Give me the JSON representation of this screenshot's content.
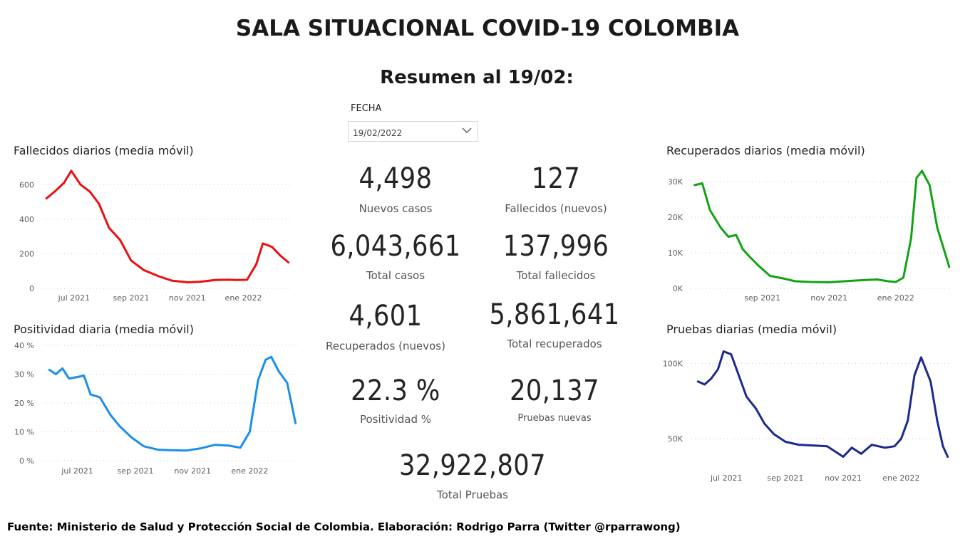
{
  "header": {
    "title": "SALA SITUACIONAL COVID-19 COLOMBIA",
    "subtitle": "Resumen al 19/02:"
  },
  "slicer": {
    "label": "FECHA",
    "value": "19/02/2022"
  },
  "cards": [
    {
      "value": "4,498",
      "label": "Nuevos casos"
    },
    {
      "value": "127",
      "label": "Fallecidos (nuevos)"
    },
    {
      "value": "6,043,661",
      "label": "Total casos"
    },
    {
      "value": "137,996",
      "label": "Total fallecidos"
    },
    {
      "value": "4,601",
      "label": "Recuperados (nuevos)"
    },
    {
      "value": "5,861,641",
      "label": "Total recuperados"
    },
    {
      "value": "22.3 %",
      "label": "Positividad %"
    },
    {
      "value": "20,137",
      "label": "Pruebas nuevas"
    },
    {
      "value": "32,922,807",
      "label": "Total Pruebas"
    }
  ],
  "footer": "Fuente: Ministerio de Salud y Protección Social de Colombia. Elaboración: Rodrigo Parra (Twitter @rparrawong)",
  "chart_data": [
    {
      "type": "line",
      "title": "Fallecidos diarios (media móvil)",
      "color": "#e8110f",
      "x": [
        "2021-06-01",
        "2021-06-10",
        "2021-06-20",
        "2021-06-28",
        "2021-07-08",
        "2021-07-18",
        "2021-07-28",
        "2021-08-08",
        "2021-08-20",
        "2021-09-01",
        "2021-09-15",
        "2021-10-01",
        "2021-10-15",
        "2021-11-01",
        "2021-11-15",
        "2021-12-01",
        "2021-12-15",
        "2021-12-25",
        "2022-01-05",
        "2022-01-15",
        "2022-01-22",
        "2022-02-01",
        "2022-02-10",
        "2022-02-19"
      ],
      "y": [
        520,
        560,
        610,
        680,
        600,
        560,
        490,
        350,
        280,
        160,
        105,
        70,
        45,
        35,
        38,
        48,
        50,
        48,
        50,
        140,
        260,
        240,
        190,
        150
      ],
      "xticks": [
        "jul 2021",
        "sep 2021",
        "nov 2021",
        "ene 2022"
      ],
      "xtick_dates": [
        "2021-07-01",
        "2021-09-01",
        "2021-11-01",
        "2022-01-01"
      ],
      "yticks": [
        "0",
        "200",
        "400",
        "600"
      ],
      "ytick_values": [
        0,
        200,
        400,
        600
      ],
      "xlim": [
        "2021-05-28",
        "2022-02-23"
      ],
      "ylim": [
        0,
        700
      ]
    },
    {
      "type": "line",
      "title": "Positividad diaria (media móvil)",
      "color": "#1a8fe8",
      "x": [
        "2021-06-01",
        "2021-06-08",
        "2021-06-15",
        "2021-06-22",
        "2021-07-01",
        "2021-07-08",
        "2021-07-15",
        "2021-07-25",
        "2021-08-05",
        "2021-08-15",
        "2021-08-28",
        "2021-09-10",
        "2021-09-25",
        "2021-10-10",
        "2021-10-25",
        "2021-11-10",
        "2021-11-25",
        "2021-12-10",
        "2021-12-22",
        "2022-01-01",
        "2022-01-10",
        "2022-01-18",
        "2022-01-24",
        "2022-02-01",
        "2022-02-10",
        "2022-02-19"
      ],
      "y": [
        31.5,
        30,
        32,
        28.5,
        29,
        29.5,
        23,
        22,
        16,
        12,
        8,
        5,
        3.8,
        3.6,
        3.5,
        4.3,
        5.5,
        5.2,
        4.5,
        10,
        28,
        35,
        36,
        31,
        27,
        13
      ],
      "xticks": [
        "jul 2021",
        "sep 2021",
        "nov 2021",
        "ene 2022"
      ],
      "xtick_dates": [
        "2021-07-01",
        "2021-09-01",
        "2021-11-01",
        "2022-01-01"
      ],
      "yticks": [
        "0 %",
        "10 %",
        "20 %",
        "30 %",
        "40 %"
      ],
      "ytick_values": [
        0,
        10,
        20,
        30,
        40
      ],
      "xlim": [
        "2021-05-25",
        "2022-02-23"
      ],
      "ylim": [
        0,
        40
      ]
    },
    {
      "type": "line",
      "title": "Recuperados diarios (media móvil)",
      "color": "#12a212",
      "x": [
        "2021-07-01",
        "2021-07-08",
        "2021-07-15",
        "2021-07-25",
        "2021-08-01",
        "2021-08-08",
        "2021-08-14",
        "2021-08-20",
        "2021-08-28",
        "2021-09-08",
        "2021-09-20",
        "2021-10-01",
        "2021-10-15",
        "2021-11-01",
        "2021-11-15",
        "2021-12-01",
        "2021-12-15",
        "2021-12-25",
        "2022-01-01",
        "2022-01-08",
        "2022-01-15",
        "2022-01-20",
        "2022-01-25",
        "2022-02-01",
        "2022-02-08",
        "2022-02-14",
        "2022-02-19"
      ],
      "y": [
        29000,
        29500,
        22000,
        17000,
        14500,
        15000,
        11000,
        9000,
        6500,
        3500,
        2800,
        2000,
        1800,
        1700,
        2000,
        2300,
        2500,
        2000,
        1800,
        3000,
        14000,
        31000,
        33000,
        29000,
        17000,
        11000,
        6000
      ],
      "xticks": [
        "sep 2021",
        "nov 2021",
        "ene 2022"
      ],
      "xtick_dates": [
        "2021-09-01",
        "2021-11-01",
        "2022-01-01"
      ],
      "yticks": [
        "0K",
        "10K",
        "20K",
        "30K"
      ],
      "ytick_values": [
        0,
        10000,
        20000,
        30000
      ],
      "xlim": [
        "2021-06-28",
        "2022-02-21"
      ],
      "ylim": [
        0,
        34000
      ]
    },
    {
      "type": "line",
      "title": "Pruebas diarias (media móvil)",
      "color": "#1c2a8e",
      "x": [
        "2021-06-01",
        "2021-06-08",
        "2021-06-15",
        "2021-06-22",
        "2021-06-28",
        "2021-07-06",
        "2021-07-14",
        "2021-07-22",
        "2021-08-01",
        "2021-08-10",
        "2021-08-20",
        "2021-09-01",
        "2021-09-15",
        "2021-10-01",
        "2021-10-15",
        "2021-11-01",
        "2021-11-10",
        "2021-11-20",
        "2021-12-01",
        "2021-12-15",
        "2021-12-25",
        "2022-01-01",
        "2022-01-08",
        "2022-01-15",
        "2022-01-22",
        "2022-02-01",
        "2022-02-08",
        "2022-02-14",
        "2022-02-19"
      ],
      "y": [
        88000,
        86000,
        90000,
        96000,
        108000,
        106000,
        92000,
        78000,
        70000,
        60000,
        53000,
        48000,
        46000,
        45500,
        45000,
        38000,
        44000,
        40000,
        46000,
        44000,
        45000,
        50000,
        62000,
        92000,
        104000,
        88000,
        62000,
        45000,
        38000
      ],
      "xticks": [
        "jul 2021",
        "sep 2021",
        "nov 2021",
        "ene 2022"
      ],
      "xtick_dates": [
        "2021-07-01",
        "2021-09-01",
        "2021-11-01",
        "2022-01-01"
      ],
      "yticks": [
        "50K",
        "100K"
      ],
      "ytick_values": [
        50000,
        100000
      ],
      "xlim": [
        "2021-05-25",
        "2022-02-23"
      ],
      "ylim": [
        34000,
        112000
      ]
    }
  ]
}
